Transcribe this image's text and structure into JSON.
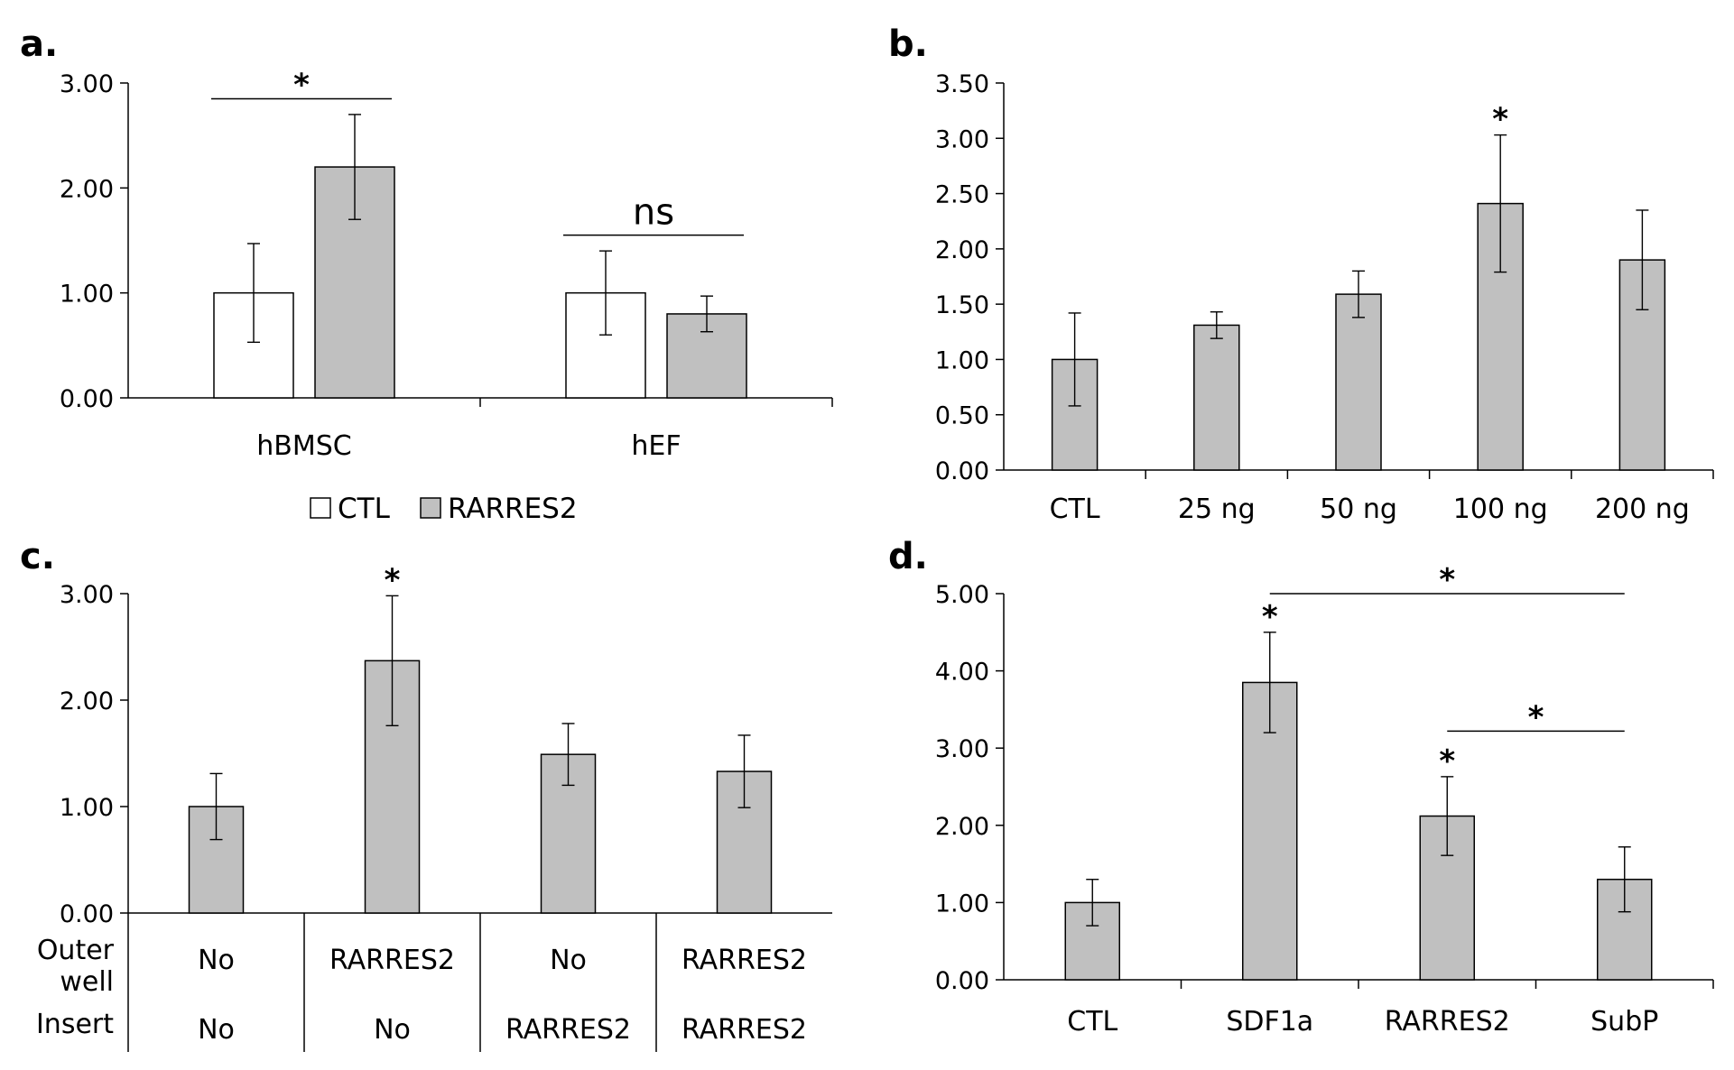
{
  "colors": {
    "ctl": "#ffffff",
    "rarres2": "#c0c0c0",
    "edge": "#000000",
    "annotation": "#000000"
  },
  "legend": {
    "items": [
      {
        "label": "CTL",
        "color": "#ffffff"
      },
      {
        "label": "RARRES2",
        "color": "#c0c0c0"
      }
    ]
  },
  "chart_data": [
    {
      "panel": "a.",
      "type": "bar",
      "categories": [
        "hBMSC",
        "hEF"
      ],
      "ylim": [
        0,
        3
      ],
      "yticks": [
        "0.00",
        "1.00",
        "2.00",
        "3.00"
      ],
      "series": [
        {
          "name": "CTL",
          "values": [
            1.0,
            1.0
          ],
          "errors": [
            0.47,
            0.4
          ],
          "color": "#ffffff"
        },
        {
          "name": "RARRES2",
          "values": [
            2.2,
            0.8
          ],
          "errors": [
            0.5,
            0.17
          ],
          "color": "#c0c0c0"
        }
      ],
      "annotations": [
        {
          "text": "*",
          "category": "hBMSC",
          "y": 2.85
        },
        {
          "text": "ns",
          "category": "hEF",
          "y": 1.55
        }
      ]
    },
    {
      "panel": "b.",
      "type": "bar",
      "categories": [
        "CTL",
        "25 ng",
        "50 ng",
        "100 ng",
        "200 ng"
      ],
      "values": [
        1.0,
        1.31,
        1.59,
        2.41,
        1.9
      ],
      "errors": [
        0.42,
        0.12,
        0.21,
        0.62,
        0.45
      ],
      "ylim": [
        0,
        3.5
      ],
      "yticks": [
        "0.00",
        "0.50",
        "1.00",
        "1.50",
        "2.00",
        "2.50",
        "3.00",
        "3.50"
      ],
      "stars": [
        {
          "index": 3,
          "text": "*"
        }
      ]
    },
    {
      "panel": "c.",
      "type": "bar",
      "values": [
        1.0,
        2.37,
        1.49,
        1.33
      ],
      "errors": [
        0.31,
        0.61,
        0.29,
        0.34
      ],
      "ylim": [
        0,
        3
      ],
      "yticks": [
        "0.00",
        "1.00",
        "2.00",
        "3.00"
      ],
      "row_labels": [
        "Outer",
        "well",
        "Insert"
      ],
      "outer_well": [
        "No",
        "RARRES2",
        "No",
        "RARRES2"
      ],
      "insert": [
        "No",
        "No",
        "RARRES2",
        "RARRES2"
      ],
      "stars": [
        {
          "index": 1,
          "text": "*"
        }
      ]
    },
    {
      "panel": "d.",
      "type": "bar",
      "categories": [
        "CTL",
        "SDF1a",
        "RARRES2",
        "SubP"
      ],
      "values": [
        1.0,
        3.85,
        2.12,
        1.3
      ],
      "errors": [
        0.3,
        0.65,
        0.51,
        0.42
      ],
      "ylim": [
        0,
        5
      ],
      "yticks": [
        "0.00",
        "1.00",
        "2.00",
        "3.00",
        "4.00",
        "5.00"
      ],
      "stars": [
        {
          "index": 1,
          "text": "*"
        },
        {
          "index": 2,
          "text": "*"
        }
      ],
      "comparisons": [
        {
          "from": 1,
          "to": 3,
          "y": 5.0,
          "text": "*"
        },
        {
          "from": 2,
          "to": 3,
          "y": 3.22,
          "text": "*"
        }
      ]
    }
  ]
}
